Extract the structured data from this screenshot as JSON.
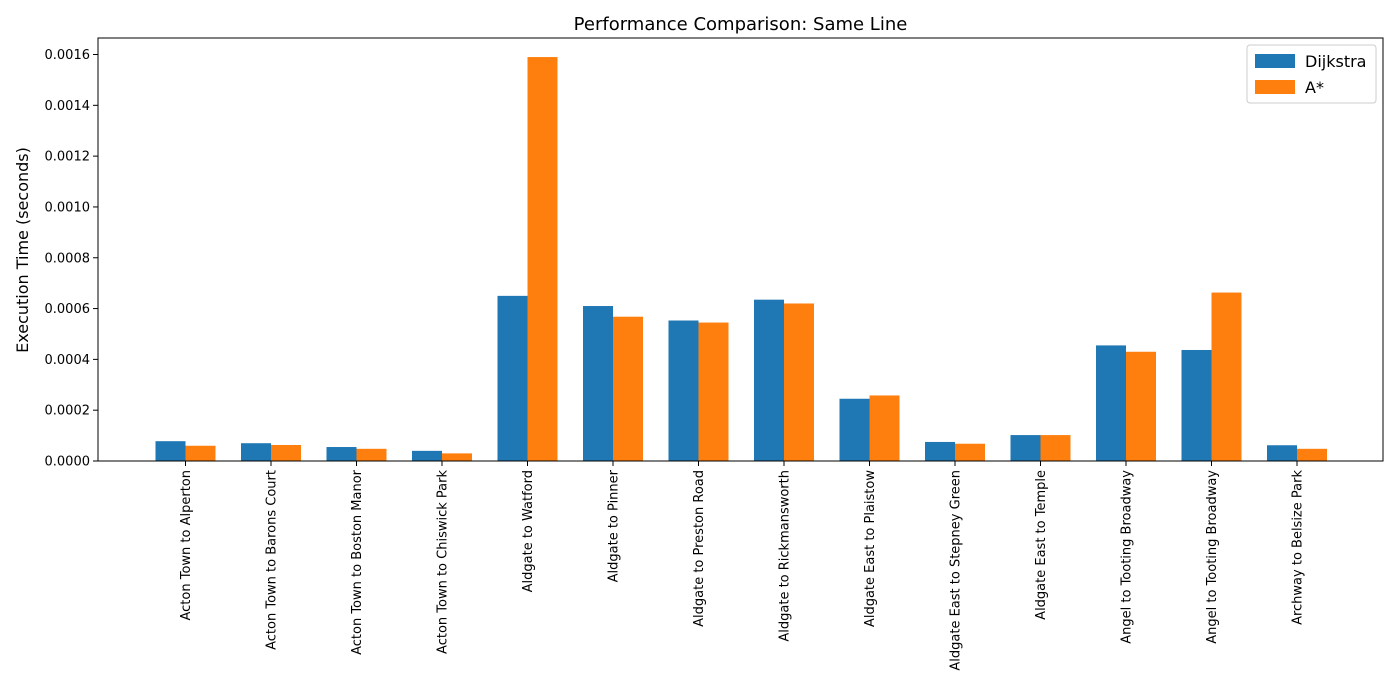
{
  "chart_data": {
    "type": "bar",
    "title": "Performance Comparison: Same Line",
    "xlabel": "",
    "ylabel": "Execution Time (seconds)",
    "ylim": [
      0,
      0.001665
    ],
    "yticks": [
      "0.0000",
      "0.0002",
      "0.0004",
      "0.0006",
      "0.0008",
      "0.0010",
      "0.0012",
      "0.0014",
      "0.0016"
    ],
    "categories": [
      "Acton Town to Alperton",
      "Acton Town to Barons Court",
      "Acton Town to Boston Manor",
      "Acton Town to Chiswick Park",
      "Aldgate to Watford",
      "Aldgate to Pinner",
      "Aldgate to Preston Road",
      "Aldgate to Rickmansworth",
      "Aldgate East to Plaistow",
      "Aldgate East to Stepney Green",
      "Aldgate East to Temple",
      "Angel to Tooting Broadway",
      "Angel to Tooting Broadway",
      "Archway to Belsize Park"
    ],
    "series": [
      {
        "name": "Dijkstra",
        "color": "#1f77b4",
        "values": [
          7.8e-05,
          7e-05,
          5.5e-05,
          4e-05,
          0.00065,
          0.00061,
          0.000553,
          0.000635,
          0.000245,
          7.5e-05,
          0.000102,
          0.000455,
          0.000437,
          6.2e-05
        ]
      },
      {
        "name": "A*",
        "color": "#ff7f0e",
        "values": [
          6e-05,
          6.3e-05,
          4.8e-05,
          3e-05,
          0.00159,
          0.000568,
          0.000545,
          0.00062,
          0.000258,
          6.8e-05,
          0.000102,
          0.00043,
          0.000663,
          4.8e-05
        ]
      }
    ],
    "grid": false,
    "legend_position": "top-right"
  }
}
